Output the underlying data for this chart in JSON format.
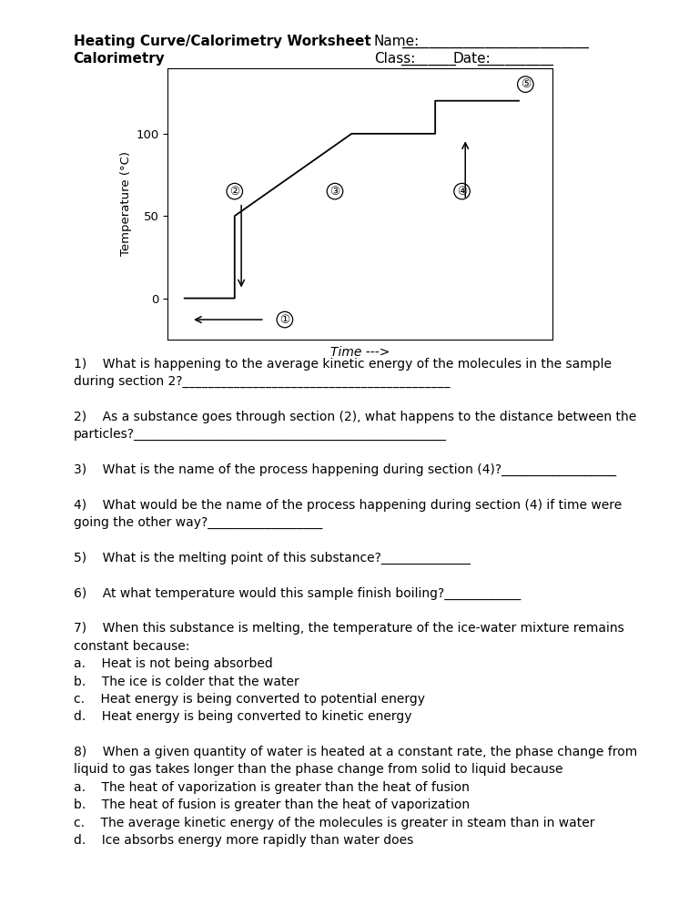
{
  "title_left1": "Heating Curve/Calorimetry Worksheet",
  "title_left2": "Calorimetry",
  "name_label": "Name:",
  "class_label": "Class:",
  "date_label": "Date:",
  "xlabel": "Time --->",
  "ylabel": "Temperature (°C)",
  "yticks": [
    0,
    50,
    100
  ],
  "curve_x": [
    0,
    1.5,
    1.5,
    5,
    7.5,
    7.5,
    10
  ],
  "curve_y": [
    0,
    0,
    50,
    100,
    100,
    120,
    120
  ],
  "bg_color": "#ffffff",
  "text_color": "#000000",
  "font_size": 10.0,
  "header_font_size": 11.0,
  "q_lines": [
    {
      "text": "1)    What is happening to the average kinetic energy of the molecules in the sample",
      "indent": 0
    },
    {
      "text": "during section 2?__________________________________________",
      "indent": 0
    },
    {
      "text": "",
      "indent": 0
    },
    {
      "text": "2)    As a substance goes through section (2), what happens to the distance between the",
      "indent": 0
    },
    {
      "text": "particles?_________________________________________________",
      "indent": 0
    },
    {
      "text": "",
      "indent": 0
    },
    {
      "text": "3)    What is the name of the process happening during section (4)?__________________",
      "indent": 0
    },
    {
      "text": "",
      "indent": 0
    },
    {
      "text": "4)    What would be the name of the process happening during section (4) if time were",
      "indent": 0
    },
    {
      "text": "going the other way?__________________",
      "indent": 0
    },
    {
      "text": "",
      "indent": 0
    },
    {
      "text": "5)    What is the melting point of this substance?______________",
      "indent": 0
    },
    {
      "text": "",
      "indent": 0
    },
    {
      "text": "6)    At what temperature would this sample finish boiling?____________",
      "indent": 0
    },
    {
      "text": "",
      "indent": 0
    },
    {
      "text": "7)    When this substance is melting, the temperature of the ice-water mixture remains",
      "indent": 0
    },
    {
      "text": "constant because:",
      "indent": 0
    },
    {
      "text": "a.    Heat is not being absorbed",
      "indent": 0
    },
    {
      "text": "b.    The ice is colder that the water",
      "indent": 0
    },
    {
      "text": "c.    Heat energy is being converted to potential energy",
      "indent": 0
    },
    {
      "text": "d.    Heat energy is being converted to kinetic energy",
      "indent": 0
    },
    {
      "text": "",
      "indent": 0
    },
    {
      "text": "8)    When a given quantity of water is heated at a constant rate, the phase change from",
      "indent": 0
    },
    {
      "text": "liquid to gas takes longer than the phase change from solid to liquid because",
      "indent": 0
    },
    {
      "text": "a.    The heat of vaporization is greater than the heat of fusion",
      "indent": 0
    },
    {
      "text": "b.    The heat of fusion is greater than the heat of vaporization",
      "indent": 0
    },
    {
      "text": "c.    The average kinetic energy of the molecules is greater in steam than in water",
      "indent": 0
    },
    {
      "text": "d.    Ice absorbs energy more rapidly than water does",
      "indent": 0
    }
  ]
}
